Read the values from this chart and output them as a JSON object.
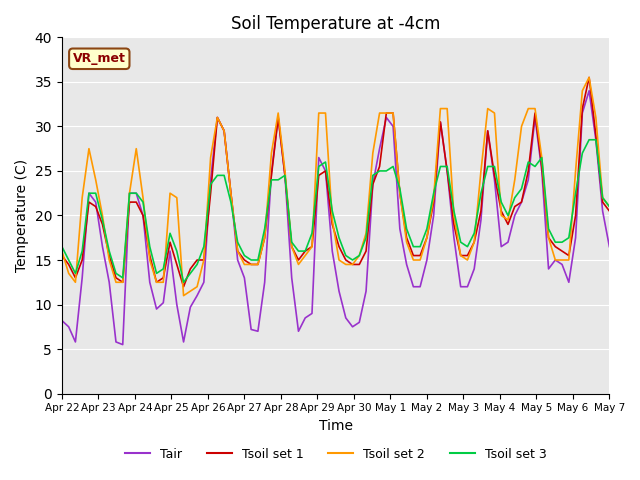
{
  "title": "Soil Temperature at -4cm",
  "xlabel": "Time",
  "ylabel": "Temperature (C)",
  "ylim": [
    0,
    40
  ],
  "annotation_text": "VR_met",
  "bg_color": "#e8e8e8",
  "fig_color": "#ffffff",
  "grid_color": "#ffffff",
  "line_colors": {
    "Tair": "#9932CC",
    "Tsoil set 1": "#CC0000",
    "Tsoil set 2": "#FF9900",
    "Tsoil set 3": "#00CC44"
  },
  "x_tick_labels": [
    "Apr 22",
    "Apr 23",
    "Apr 24",
    "Apr 25",
    "Apr 26",
    "Apr 27",
    "Apr 28",
    "Apr 29",
    "Apr 30",
    "May 1",
    "May 2",
    "May 3",
    "May 4",
    "May 5",
    "May 6",
    "May 7"
  ],
  "tair_values": [
    8.2,
    7.5,
    5.8,
    13.0,
    22.5,
    21.5,
    16.5,
    12.5,
    5.8,
    5.5,
    22.5,
    22.5,
    20.0,
    12.5,
    9.5,
    10.2,
    16.0,
    10.0,
    5.8,
    9.7,
    11.0,
    12.5,
    24.0,
    31.0,
    29.5,
    22.5,
    15.0,
    13.0,
    7.2,
    7.0,
    12.5,
    24.8,
    31.0,
    24.5,
    13.0,
    7.0,
    8.5,
    9.0,
    26.5,
    25.0,
    16.0,
    11.5,
    8.5,
    7.5,
    8.0,
    11.5,
    23.5,
    27.5,
    31.0,
    30.0,
    18.5,
    14.5,
    12.0,
    12.0,
    15.0,
    20.0,
    30.5,
    25.0,
    17.5,
    12.0,
    12.0,
    14.0,
    19.5,
    29.5,
    24.0,
    16.5,
    17.0,
    20.0,
    21.5,
    24.0,
    31.0,
    25.0,
    14.0,
    15.0,
    14.5,
    12.5,
    17.5,
    31.5,
    34.0,
    28.5,
    20.5,
    16.5
  ],
  "tsoil1_values": [
    15.5,
    14.5,
    13.0,
    15.0,
    21.5,
    21.0,
    19.0,
    15.5,
    13.0,
    12.5,
    21.5,
    21.5,
    20.0,
    15.5,
    12.5,
    13.0,
    17.0,
    14.5,
    12.0,
    14.0,
    15.0,
    15.0,
    22.5,
    31.0,
    29.5,
    22.5,
    16.0,
    15.0,
    14.5,
    14.5,
    17.5,
    24.5,
    31.0,
    24.5,
    16.5,
    15.0,
    16.0,
    16.5,
    24.5,
    25.0,
    19.0,
    16.5,
    15.0,
    14.5,
    14.5,
    16.0,
    23.5,
    25.5,
    31.5,
    31.5,
    22.5,
    17.5,
    15.5,
    15.5,
    17.5,
    21.5,
    30.5,
    25.0,
    19.0,
    15.5,
    15.5,
    17.0,
    20.5,
    29.5,
    24.5,
    20.5,
    19.0,
    21.0,
    21.5,
    25.0,
    31.5,
    25.5,
    17.5,
    16.5,
    16.0,
    15.5,
    20.0,
    32.0,
    35.5,
    29.0,
    21.5,
    20.5
  ],
  "tsoil2_values": [
    16.0,
    13.5,
    12.5,
    22.0,
    27.5,
    24.0,
    20.0,
    15.0,
    12.5,
    12.5,
    22.5,
    27.5,
    22.0,
    15.0,
    12.5,
    12.5,
    22.5,
    22.0,
    11.0,
    11.5,
    12.0,
    15.0,
    26.5,
    31.0,
    29.5,
    22.5,
    16.0,
    14.5,
    14.5,
    14.5,
    17.5,
    27.0,
    31.5,
    25.0,
    16.5,
    14.5,
    15.5,
    16.5,
    31.5,
    31.5,
    19.5,
    15.0,
    14.5,
    14.5,
    15.5,
    18.0,
    27.0,
    31.5,
    31.5,
    31.5,
    22.5,
    17.0,
    15.0,
    15.0,
    17.5,
    22.0,
    32.0,
    32.0,
    20.0,
    15.5,
    15.0,
    17.0,
    25.0,
    32.0,
    31.5,
    20.0,
    19.5,
    24.0,
    30.0,
    32.0,
    32.0,
    26.5,
    17.5,
    15.0,
    15.0,
    15.0,
    25.0,
    34.0,
    35.5,
    31.0,
    22.0,
    21.0
  ],
  "tsoil3_values": [
    16.5,
    15.0,
    13.5,
    16.0,
    22.5,
    22.5,
    19.5,
    16.0,
    13.5,
    13.0,
    22.5,
    22.5,
    21.5,
    16.5,
    13.5,
    14.0,
    18.0,
    16.0,
    12.5,
    13.5,
    14.5,
    16.5,
    23.5,
    24.5,
    24.5,
    21.5,
    17.0,
    15.5,
    15.0,
    15.0,
    18.5,
    24.0,
    24.0,
    24.5,
    17.0,
    16.0,
    16.0,
    18.0,
    25.5,
    26.0,
    20.5,
    17.5,
    15.5,
    15.0,
    15.5,
    17.5,
    24.5,
    25.0,
    25.0,
    25.5,
    23.0,
    18.5,
    16.5,
    16.5,
    18.5,
    22.5,
    25.5,
    25.5,
    20.5,
    17.0,
    16.5,
    18.0,
    22.5,
    25.5,
    25.5,
    21.5,
    20.0,
    22.0,
    23.0,
    26.0,
    25.5,
    26.5,
    18.5,
    17.0,
    17.0,
    17.5,
    22.5,
    27.0,
    28.5,
    28.5,
    22.0,
    21.0
  ]
}
